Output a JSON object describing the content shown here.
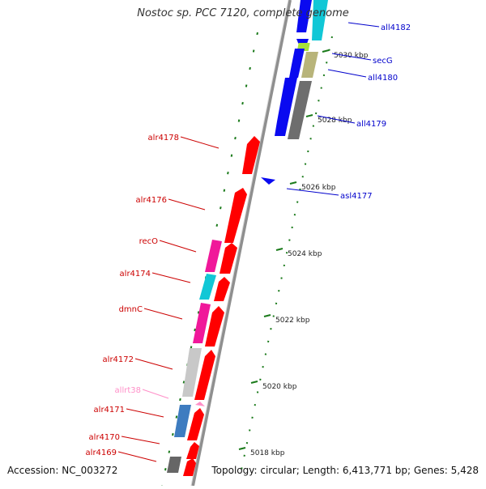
{
  "title": "Nostoc sp. PCC 7120, complete genome",
  "footer": {
    "accession": "Accession: NC_003272",
    "summary": "Topology: circular; Length: 6,413,771 bp; Genes: 5,428"
  },
  "colors": {
    "backbone": "#8c8c8c",
    "forward_label": "#cc0000",
    "reverse_label": "#0000cc",
    "rna_label": "#ff8fc8",
    "tick": "#1a7a1a"
  },
  "scale_labels": [
    "5018 kbp",
    "5020 kbp",
    "5022 kbp",
    "5024 kbp",
    "5026 kbp",
    "5028 kbp",
    "5030 kbp"
  ],
  "reverse_genes": [
    "all4182",
    "secG",
    "all4180",
    "all4179",
    "asl4177"
  ],
  "forward_genes": [
    "alr4178",
    "alr4176",
    "recO",
    "alr4174",
    "dmnC",
    "alr4172",
    "allrt38",
    "alr4171",
    "alr4170",
    "alr4169"
  ]
}
